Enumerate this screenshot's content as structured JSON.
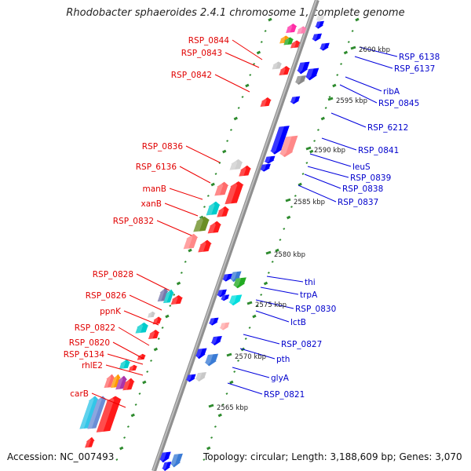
{
  "title": "Rhodobacter sphaeroides 2.4.1 chromosome 1, complete genome",
  "accession": "Accession: NC_007493",
  "summary": "Topology: circular; Length: 3,188,609 bp; Genes: 3,070",
  "colors": {
    "forward_label": "#e00000",
    "reverse_label": "#0000cc",
    "backbone": "#999999",
    "tick": "#2e8b2e"
  },
  "left_labels": [
    {
      "text": "RSP_0844"
    },
    {
      "text": "RSP_0843"
    },
    {
      "text": "RSP_0842"
    },
    {
      "text": "RSP_0836"
    },
    {
      "text": "RSP_6136"
    },
    {
      "text": "manB"
    },
    {
      "text": "xanB"
    },
    {
      "text": "RSP_0832"
    },
    {
      "text": "RSP_0828"
    },
    {
      "text": "RSP_0826"
    },
    {
      "text": "ppnK"
    },
    {
      "text": "RSP_0822"
    },
    {
      "text": "RSP_0820"
    },
    {
      "text": "RSP_6134"
    },
    {
      "text": "rhlE2"
    },
    {
      "text": "carB"
    }
  ],
  "right_labels": [
    {
      "text": "RSP_6138"
    },
    {
      "text": "RSP_6137"
    },
    {
      "text": "ribA"
    },
    {
      "text": "RSP_0845"
    },
    {
      "text": "RSP_6212"
    },
    {
      "text": "RSP_0841"
    },
    {
      "text": "leuS"
    },
    {
      "text": "RSP_0839"
    },
    {
      "text": "RSP_0838"
    },
    {
      "text": "RSP_0837"
    },
    {
      "text": "thi"
    },
    {
      "text": "trpA"
    },
    {
      "text": "RSP_0830"
    },
    {
      "text": "lctB"
    },
    {
      "text": "RSP_0827"
    },
    {
      "text": "pth"
    },
    {
      "text": "glyA"
    },
    {
      "text": "RSP_0821"
    }
  ],
  "kbp_labels": [
    {
      "text": "2600 kbp"
    },
    {
      "text": "2595 kbp"
    },
    {
      "text": "2590 kbp"
    },
    {
      "text": "2585 kbp"
    },
    {
      "text": "2580 kbp"
    },
    {
      "text": "2575 kbp"
    },
    {
      "text": "2570 kbp"
    },
    {
      "text": "2565 kbp"
    }
  ]
}
